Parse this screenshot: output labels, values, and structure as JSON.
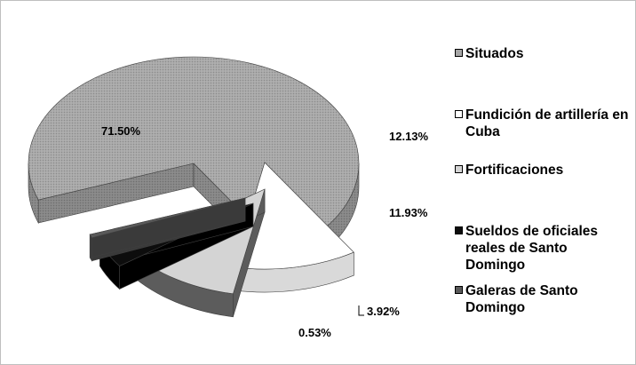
{
  "chart_data": {
    "type": "pie",
    "style": "3d-exploded",
    "legend_position": "right",
    "slices": [
      {
        "name": "Situados",
        "value": 71.5,
        "label": "71.50%",
        "color": "#a6a6a6"
      },
      {
        "name": "Fundición de artillería en Cuba",
        "value": 12.13,
        "label": "12.13%",
        "color": "#ffffff"
      },
      {
        "name": "Fortificaciones",
        "value": 11.93,
        "label": "11.93%",
        "color": "#d4d4d4"
      },
      {
        "name": "Sueldos de oficiales reales de Santo Domingo",
        "value": 3.92,
        "label": "3.92%",
        "color": "#0d0d0d"
      },
      {
        "name": "Galeras de Santo Domingo",
        "value": 0.53,
        "label": "0.53%",
        "color": "#595959"
      }
    ]
  }
}
